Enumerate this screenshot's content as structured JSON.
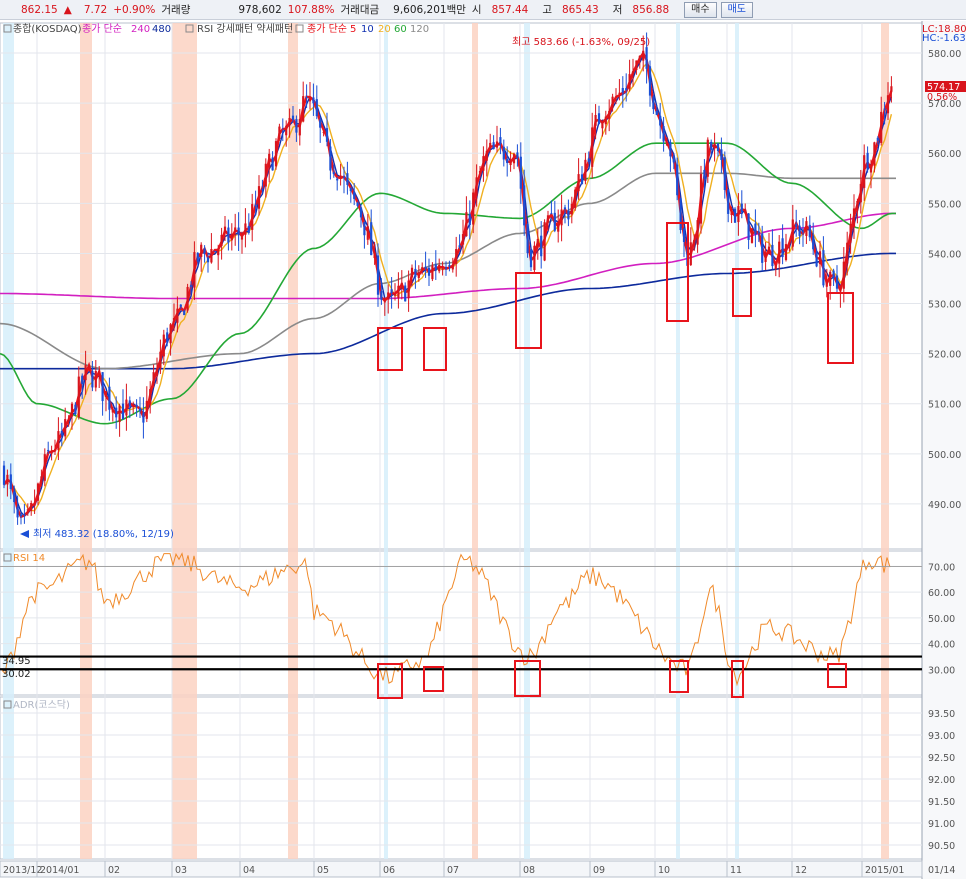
{
  "quote": {
    "price": "862.15",
    "arrow": "▲",
    "change": "7.72",
    "change_pct": "+0.90%",
    "volume_label": "거래량",
    "volume": "978,602",
    "volume_pct": "107.88%",
    "amount_label": "거래대금",
    "amount": "9,606,201백만",
    "open_label": "시",
    "open": "857.44",
    "high_label": "고",
    "high": "865.43",
    "low_label": "저",
    "low": "856.88",
    "buy_label": "매수",
    "sell_label": "매도"
  },
  "colors": {
    "up": "#d8141c",
    "down": "#1a4fd6",
    "ma5": "#e8141c",
    "ma10": "#1030b0",
    "ma20": "#f0b020",
    "ma60": "#24a835",
    "ma120": "#8a8a8a",
    "ma240": "#d21fc0",
    "ma480": "#0d2a9c",
    "rsi": "#f08a2a",
    "box": "#e8141c",
    "band_warm": "#fbd2c2",
    "band_cool": "#d6eefa",
    "grid": "#e3e6ec",
    "axis_text": "#555"
  },
  "main_panel": {
    "icon": "gear-icon",
    "index_label": "종합(KOSDAQ)",
    "ma_title": "종가 단순",
    "ma240_label": "240",
    "ma480_label": "480",
    "pattern_label": "RSI 강세패턴  약세패턴",
    "ma_short_title": "종가 단순",
    "ma5_label": "5",
    "ma10_label": "10",
    "ma20_label": "20",
    "ma60_label": "60",
    "ma120_label": "120",
    "lc_label": "LC:18.80",
    "hc_label": "HC:-1.63",
    "high_annotation": "최고 583.66 (-1.63%, 09/25)",
    "low_annotation": "최저 483.32 (18.80%, 12/19)",
    "last_price_tag": "574.17",
    "last_change_tag": "0.56%"
  },
  "rsi_panel": {
    "label": "RSI 14",
    "line_high_label": "34.95",
    "line_low_label": "30.02"
  },
  "adr_panel": {
    "label": "ADR(코스닥)"
  },
  "x_axis": {
    "labels": [
      "2013/12",
      "2014/01",
      "02",
      "03",
      "04",
      "05",
      "06",
      "07",
      "08",
      "09",
      "10",
      "11",
      "12",
      "2015/01",
      "01/14"
    ]
  },
  "chart_data": [
    {
      "type": "candlestick",
      "title": "종합(KOSDAQ)",
      "x_range": [
        "2013/12",
        "2015/01"
      ],
      "ylim": [
        481,
        586
      ],
      "y_ticks": [
        "490.00",
        "500.00",
        "510.00",
        "520.00",
        "530.00",
        "540.00",
        "550.00",
        "560.00",
        "570.00",
        "580.00"
      ],
      "close_keypoints": [
        {
          "x": "2013/12",
          "value": 498
        },
        {
          "x": "2013/12/19",
          "value": 485
        },
        {
          "x": "2014/01/10",
          "value": 502
        },
        {
          "x": "2014/01/25",
          "value": 516
        },
        {
          "x": "2014/02/05",
          "value": 510
        },
        {
          "x": "2014/02/15",
          "value": 507
        },
        {
          "x": "2014/03/01",
          "value": 525
        },
        {
          "x": "2014/03/15",
          "value": 540
        },
        {
          "x": "2014/04/01",
          "value": 544
        },
        {
          "x": "2014/04/20",
          "value": 564
        },
        {
          "x": "2014/04/28",
          "value": 570
        },
        {
          "x": "2014/05/10",
          "value": 558
        },
        {
          "x": "2014/05/20",
          "value": 550
        },
        {
          "x": "2014/06/05",
          "value": 530
        },
        {
          "x": "2014/06/20",
          "value": 536
        },
        {
          "x": "2014/07/05",
          "value": 540
        },
        {
          "x": "2014/07/20",
          "value": 560
        },
        {
          "x": "2014/07/30",
          "value": 561
        },
        {
          "x": "2014/08/05",
          "value": 540
        },
        {
          "x": "2014/08/20",
          "value": 548
        },
        {
          "x": "2014/09/10",
          "value": 570
        },
        {
          "x": "2014/09/25",
          "value": 578
        },
        {
          "x": "2014/10/05",
          "value": 565
        },
        {
          "x": "2014/10/15",
          "value": 540
        },
        {
          "x": "2014/10/25",
          "value": 561
        },
        {
          "x": "2014/11/05",
          "value": 548
        },
        {
          "x": "2014/11/20",
          "value": 540
        },
        {
          "x": "2014/12/05",
          "value": 545
        },
        {
          "x": "2014/12/20",
          "value": 533
        },
        {
          "x": "2015/01/05",
          "value": 560
        },
        {
          "x": "2015/01/14",
          "value": 574.17
        }
      ],
      "series": [
        {
          "name": "5",
          "color": "#e8141c"
        },
        {
          "name": "10",
          "color": "#1030b0"
        },
        {
          "name": "20",
          "color": "#f0b020"
        },
        {
          "name": "60",
          "color": "#24a835"
        },
        {
          "name": "120",
          "color": "#8a8a8a"
        },
        {
          "name": "240",
          "color": "#d21fc0"
        },
        {
          "name": "480",
          "color": "#0d2a9c"
        }
      ],
      "ma_keypoints": {
        "ma60": [
          {
            "x": "2013/12",
            "value": 520
          },
          {
            "x": "2014/01",
            "value": 510
          },
          {
            "x": "2014/02",
            "value": 506
          },
          {
            "x": "2014/03",
            "value": 511
          },
          {
            "x": "2014/04",
            "value": 524
          },
          {
            "x": "2014/05",
            "value": 541
          },
          {
            "x": "2014/06",
            "value": 552
          },
          {
            "x": "2014/07",
            "value": 548
          },
          {
            "x": "2014/08",
            "value": 547
          },
          {
            "x": "2014/09",
            "value": 555
          },
          {
            "x": "2014/10",
            "value": 562
          },
          {
            "x": "2014/11",
            "value": 562
          },
          {
            "x": "2014/12",
            "value": 554
          },
          {
            "x": "2015/01",
            "value": 545
          },
          {
            "x": "2015/01/14",
            "value": 548
          }
        ],
        "ma120": [
          {
            "x": "2013/12",
            "value": 526
          },
          {
            "x": "2014/02",
            "value": 517
          },
          {
            "x": "2014/04",
            "value": 520
          },
          {
            "x": "2014/05",
            "value": 527
          },
          {
            "x": "2014/06",
            "value": 534
          },
          {
            "x": "2014/07",
            "value": 538
          },
          {
            "x": "2014/08",
            "value": 544
          },
          {
            "x": "2014/09",
            "value": 550
          },
          {
            "x": "2014/10",
            "value": 556
          },
          {
            "x": "2014/11",
            "value": 556
          },
          {
            "x": "2014/12",
            "value": 555
          },
          {
            "x": "2015/01/14",
            "value": 555
          }
        ],
        "ma240": [
          {
            "x": "2013/12",
            "value": 532
          },
          {
            "x": "2014/03",
            "value": 531
          },
          {
            "x": "2014/06",
            "value": 531
          },
          {
            "x": "2014/08",
            "value": 533
          },
          {
            "x": "2014/10",
            "value": 538
          },
          {
            "x": "2014/12",
            "value": 545
          },
          {
            "x": "2015/01/14",
            "value": 548
          }
        ],
        "ma480": [
          {
            "x": "2013/12",
            "value": 517
          },
          {
            "x": "2014/03",
            "value": 517
          },
          {
            "x": "2014/05",
            "value": 520
          },
          {
            "x": "2014/07",
            "value": 528
          },
          {
            "x": "2014/09",
            "value": 533
          },
          {
            "x": "2014/11",
            "value": 536
          },
          {
            "x": "2015/01/14",
            "value": 540
          }
        ]
      }
    },
    {
      "type": "line",
      "title": "RSI 14",
      "ylim": [
        20,
        76
      ],
      "y_ticks": [
        "30.00",
        "40.00",
        "50.00",
        "60.00",
        "70.00"
      ],
      "reference_lines": [
        34.95,
        30.02
      ],
      "keypoints": [
        {
          "x": "2013/12",
          "value": 28
        },
        {
          "x": "2014/01",
          "value": 60
        },
        {
          "x": "2014/01/25",
          "value": 72
        },
        {
          "x": "2014/02",
          "value": 57
        },
        {
          "x": "2014/03",
          "value": 73
        },
        {
          "x": "2014/04",
          "value": 62
        },
        {
          "x": "2014/04/28",
          "value": 71
        },
        {
          "x": "2014/05",
          "value": 52
        },
        {
          "x": "2014/06/05",
          "value": 27
        },
        {
          "x": "2014/06/20",
          "value": 33
        },
        {
          "x": "2014/07/10",
          "value": 72
        },
        {
          "x": "2014/08/05",
          "value": 35
        },
        {
          "x": "2014/08/20",
          "value": 55
        },
        {
          "x": "2014/09",
          "value": 66
        },
        {
          "x": "2014/10/15",
          "value": 30
        },
        {
          "x": "2014/10/25",
          "value": 60
        },
        {
          "x": "2014/11/05",
          "value": 28
        },
        {
          "x": "2014/11/20",
          "value": 46
        },
        {
          "x": "2014/12/20",
          "value": 35
        },
        {
          "x": "2015/01/05",
          "value": 73
        },
        {
          "x": "2015/01/14",
          "value": 70
        }
      ]
    },
    {
      "type": "line",
      "title": "ADR(코스닥)",
      "y_ticks": [
        "90.50",
        "91.00",
        "91.50",
        "92.00",
        "92.50",
        "93.00",
        "93.50"
      ]
    }
  ]
}
